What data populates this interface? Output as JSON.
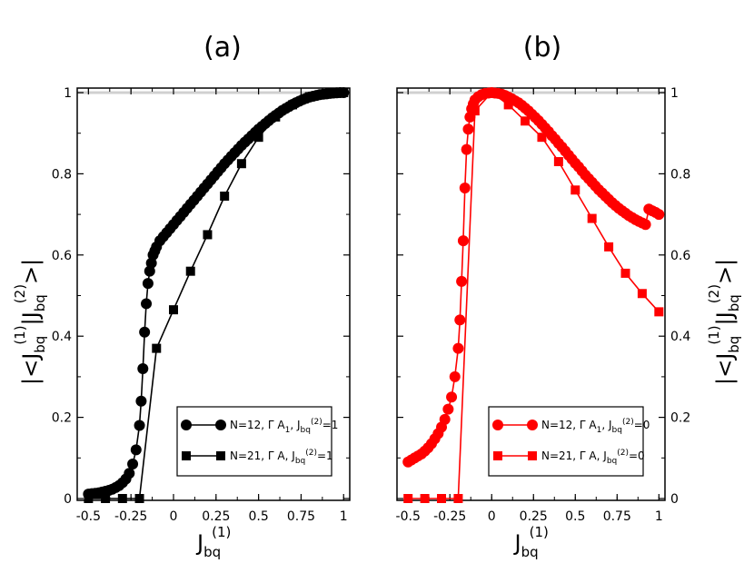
{
  "chart_data": [
    {
      "type": "line",
      "panel_title": "(a)",
      "xlabel": "J_bq^(1)",
      "ylabel": "|<J_bq^(1)|J_bq^(2)>|",
      "xlim": [
        -0.55,
        1.02
      ],
      "ylim": [
        0,
        1.0
      ],
      "xticks": [
        -0.5,
        -0.25,
        0,
        0.25,
        0.5,
        0.75,
        1
      ],
      "xtick_labels": [
        "-0.5",
        "-0.25",
        "0",
        "0.25",
        "0.5",
        "0.75",
        "1"
      ],
      "yticks": [
        0,
        0.2,
        0.4,
        0.6,
        0.8,
        1
      ],
      "ytick_labels": [
        "0",
        "0.2",
        "0.4",
        "0.6",
        "0.8",
        "1"
      ],
      "series": [
        {
          "name": "N=12, ΓA1, J_bq^(2)=1",
          "color": "#000000",
          "marker": "circle",
          "points": [
            [
              -0.5,
              0.011
            ],
            [
              -0.48,
              0.012
            ],
            [
              -0.46,
              0.013
            ],
            [
              -0.44,
              0.014
            ],
            [
              -0.42,
              0.016
            ],
            [
              -0.4,
              0.018
            ],
            [
              -0.38,
              0.02
            ],
            [
              -0.36,
              0.023
            ],
            [
              -0.34,
              0.027
            ],
            [
              -0.32,
              0.032
            ],
            [
              -0.3,
              0.039
            ],
            [
              -0.28,
              0.048
            ],
            [
              -0.26,
              0.062
            ],
            [
              -0.24,
              0.085
            ],
            [
              -0.22,
              0.12
            ],
            [
              -0.2,
              0.18
            ],
            [
              -0.19,
              0.24
            ],
            [
              -0.18,
              0.32
            ],
            [
              -0.17,
              0.41
            ],
            [
              -0.16,
              0.48
            ],
            [
              -0.15,
              0.53
            ],
            [
              -0.14,
              0.56
            ],
            [
              -0.13,
              0.58
            ],
            [
              -0.12,
              0.6
            ],
            [
              -0.11,
              0.61
            ],
            [
              -0.1,
              0.62
            ],
            [
              -0.08,
              0.635
            ],
            [
              -0.06,
              0.645
            ],
            [
              -0.04,
              0.655
            ],
            [
              -0.02,
              0.665
            ],
            [
              0.0,
              0.675
            ],
            [
              0.02,
              0.685
            ],
            [
              0.04,
              0.695
            ],
            [
              0.06,
              0.705
            ],
            [
              0.08,
              0.715
            ],
            [
              0.1,
              0.725
            ],
            [
              0.12,
              0.735
            ],
            [
              0.14,
              0.745
            ],
            [
              0.16,
              0.755
            ],
            [
              0.18,
              0.765
            ],
            [
              0.2,
              0.775
            ],
            [
              0.22,
              0.785
            ],
            [
              0.24,
              0.795
            ],
            [
              0.26,
              0.805
            ],
            [
              0.28,
              0.815
            ],
            [
              0.3,
              0.825
            ],
            [
              0.32,
              0.834
            ],
            [
              0.34,
              0.843
            ],
            [
              0.36,
              0.852
            ],
            [
              0.38,
              0.861
            ],
            [
              0.4,
              0.87
            ],
            [
              0.42,
              0.878
            ],
            [
              0.44,
              0.886
            ],
            [
              0.46,
              0.894
            ],
            [
              0.48,
              0.902
            ],
            [
              0.5,
              0.91
            ],
            [
              0.52,
              0.917
            ],
            [
              0.54,
              0.924
            ],
            [
              0.56,
              0.931
            ],
            [
              0.58,
              0.938
            ],
            [
              0.6,
              0.944
            ],
            [
              0.62,
              0.95
            ],
            [
              0.64,
              0.956
            ],
            [
              0.66,
              0.961
            ],
            [
              0.68,
              0.966
            ],
            [
              0.7,
              0.971
            ],
            [
              0.72,
              0.975
            ],
            [
              0.74,
              0.979
            ],
            [
              0.76,
              0.983
            ],
            [
              0.78,
              0.986
            ],
            [
              0.8,
              0.989
            ],
            [
              0.82,
              0.991
            ],
            [
              0.84,
              0.993
            ],
            [
              0.86,
              0.995
            ],
            [
              0.88,
              0.996
            ],
            [
              0.9,
              0.997
            ],
            [
              0.92,
              0.998
            ],
            [
              0.94,
              0.999
            ],
            [
              0.96,
              0.9995
            ],
            [
              0.98,
              1.0
            ],
            [
              1.0,
              1.0
            ]
          ]
        },
        {
          "name": "N=21, ΓA, J_bq^(2)=1",
          "color": "#000000",
          "marker": "square",
          "points": [
            [
              -0.5,
              0.0
            ],
            [
              -0.4,
              0.0
            ],
            [
              -0.3,
              0.0
            ],
            [
              -0.2,
              0.0
            ],
            [
              -0.1,
              0.37
            ],
            [
              0.0,
              0.465
            ],
            [
              0.1,
              0.56
            ],
            [
              0.2,
              0.65
            ],
            [
              0.3,
              0.745
            ],
            [
              0.4,
              0.825
            ],
            [
              0.5,
              0.89
            ],
            [
              0.6,
              0.94
            ],
            [
              0.7,
              0.97
            ],
            [
              0.8,
              0.99
            ],
            [
              0.9,
              0.997
            ],
            [
              1.0,
              1.0
            ]
          ]
        }
      ],
      "legend": {
        "position": "bottom-right",
        "entries": [
          {
            "prefix": "N=12, Γ A",
            "sub1": "1",
            "mid": ", J",
            "sub2": "bq",
            "sup2": "(2)",
            "suffix": "=1"
          },
          {
            "prefix": "N=21, Γ A",
            "sub1": "",
            "mid": ", J",
            "sub2": "bq",
            "sup2": "(2)",
            "suffix": "=1"
          }
        ]
      }
    },
    {
      "type": "line",
      "panel_title": "(b)",
      "xlabel": "J_bq^(1)",
      "ylabel": "|<J_bq^(1)|J_bq^(2)>|",
      "xlim": [
        -0.55,
        1.02
      ],
      "ylim": [
        0,
        1.0
      ],
      "xticks": [
        -0.5,
        -0.25,
        0,
        0.25,
        0.5,
        0.75,
        1
      ],
      "xtick_labels": [
        "-0.5",
        "-0.25",
        "0",
        "0.25",
        "0.5",
        "0.75",
        "1"
      ],
      "yticks": [
        0,
        0.2,
        0.4,
        0.6,
        0.8,
        1
      ],
      "ytick_labels": [
        "0",
        "0.2",
        "0.4",
        "0.6",
        "0.8",
        "1"
      ],
      "series": [
        {
          "name": "N=12, ΓA1, J_bq^(2)=0",
          "color": "#ff0000",
          "marker": "circle",
          "points": [
            [
              -0.5,
              0.09
            ],
            [
              -0.48,
              0.095
            ],
            [
              -0.46,
              0.1
            ],
            [
              -0.44,
              0.105
            ],
            [
              -0.42,
              0.11
            ],
            [
              -0.4,
              0.117
            ],
            [
              -0.38,
              0.125
            ],
            [
              -0.36,
              0.135
            ],
            [
              -0.34,
              0.147
            ],
            [
              -0.32,
              0.16
            ],
            [
              -0.3,
              0.176
            ],
            [
              -0.28,
              0.195
            ],
            [
              -0.26,
              0.22
            ],
            [
              -0.24,
              0.25
            ],
            [
              -0.22,
              0.3
            ],
            [
              -0.2,
              0.37
            ],
            [
              -0.19,
              0.44
            ],
            [
              -0.18,
              0.535
            ],
            [
              -0.17,
              0.635
            ],
            [
              -0.16,
              0.765
            ],
            [
              -0.15,
              0.86
            ],
            [
              -0.14,
              0.91
            ],
            [
              -0.13,
              0.94
            ],
            [
              -0.12,
              0.96
            ],
            [
              -0.11,
              0.972
            ],
            [
              -0.1,
              0.982
            ],
            [
              -0.08,
              0.99
            ],
            [
              -0.06,
              0.995
            ],
            [
              -0.04,
              0.998
            ],
            [
              -0.02,
              0.999
            ],
            [
              0.0,
              1.0
            ],
            [
              0.02,
              0.999
            ],
            [
              0.04,
              0.998
            ],
            [
              0.06,
              0.996
            ],
            [
              0.08,
              0.993
            ],
            [
              0.1,
              0.989
            ],
            [
              0.12,
              0.985
            ],
            [
              0.14,
              0.98
            ],
            [
              0.16,
              0.975
            ],
            [
              0.18,
              0.969
            ],
            [
              0.2,
              0.962
            ],
            [
              0.22,
              0.955
            ],
            [
              0.24,
              0.947
            ],
            [
              0.26,
              0.939
            ],
            [
              0.28,
              0.931
            ],
            [
              0.3,
              0.922
            ],
            [
              0.32,
              0.913
            ],
            [
              0.34,
              0.904
            ],
            [
              0.36,
              0.894
            ],
            [
              0.38,
              0.885
            ],
            [
              0.4,
              0.875
            ],
            [
              0.42,
              0.866
            ],
            [
              0.44,
              0.856
            ],
            [
              0.46,
              0.846
            ],
            [
              0.48,
              0.836
            ],
            [
              0.5,
              0.826
            ],
            [
              0.52,
              0.817
            ],
            [
              0.54,
              0.807
            ],
            [
              0.56,
              0.797
            ],
            [
              0.58,
              0.788
            ],
            [
              0.6,
              0.779
            ],
            [
              0.62,
              0.77
            ],
            [
              0.64,
              0.761
            ],
            [
              0.66,
              0.753
            ],
            [
              0.68,
              0.745
            ],
            [
              0.7,
              0.737
            ],
            [
              0.72,
              0.729
            ],
            [
              0.74,
              0.722
            ],
            [
              0.76,
              0.715
            ],
            [
              0.78,
              0.709
            ],
            [
              0.8,
              0.703
            ],
            [
              0.82,
              0.697
            ],
            [
              0.84,
              0.692
            ],
            [
              0.86,
              0.687
            ],
            [
              0.88,
              0.683
            ],
            [
              0.9,
              0.679
            ],
            [
              0.92,
              0.675
            ],
            [
              0.94,
              0.713
            ],
            [
              0.96,
              0.709
            ],
            [
              0.98,
              0.705
            ],
            [
              1.0,
              0.7
            ]
          ]
        },
        {
          "name": "N=21, ΓA, J_bq^(2)=0",
          "color": "#ff0000",
          "marker": "square",
          "points": [
            [
              -0.5,
              0.0
            ],
            [
              -0.4,
              0.0
            ],
            [
              -0.3,
              0.0
            ],
            [
              -0.2,
              0.0
            ],
            [
              -0.1,
              0.955
            ],
            [
              0.0,
              1.0
            ],
            [
              0.1,
              0.97
            ],
            [
              0.2,
              0.93
            ],
            [
              0.3,
              0.89
            ],
            [
              0.4,
              0.83
            ],
            [
              0.5,
              0.76
            ],
            [
              0.6,
              0.69
            ],
            [
              0.7,
              0.62
            ],
            [
              0.8,
              0.555
            ],
            [
              0.9,
              0.505
            ],
            [
              1.0,
              0.46
            ]
          ]
        }
      ],
      "legend": {
        "position": "bottom-right",
        "entries": [
          {
            "prefix": "N=12, Γ A",
            "sub1": "1",
            "mid": ", J",
            "sub2": "bq",
            "sup2": "(2)",
            "suffix": "=0"
          },
          {
            "prefix": "N=21, Γ A",
            "sub1": "",
            "mid": ", J",
            "sub2": "bq",
            "sup2": "(2)",
            "suffix": "=0"
          }
        ]
      }
    }
  ],
  "axis_text": {
    "x_main": "J",
    "x_sub": "bq",
    "x_sup": "(1)",
    "y_parts": [
      "|<J",
      "bq",
      "(1)",
      "|J",
      "bq",
      "(2)",
      ">|"
    ]
  }
}
